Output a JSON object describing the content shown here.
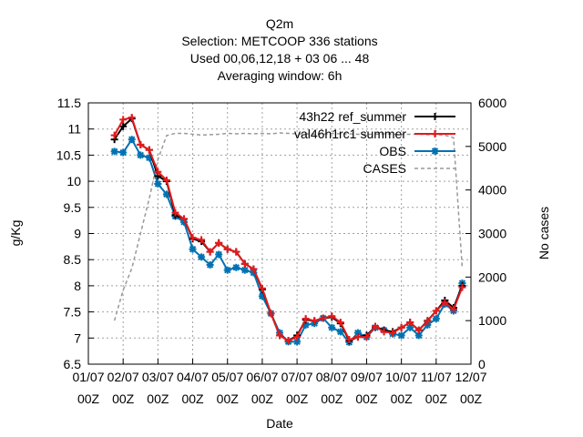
{
  "chart_data": {
    "type": "line",
    "title_lines": [
      "Q2m",
      "Selection: METCOOP    336 stations",
      "Used  00,06,12,18  + 03 06 ... 48",
      "Averaging window:  6h"
    ],
    "xlabel": "Date",
    "ylabel": "g/Kg",
    "y2label": "No cases",
    "grid": true,
    "legend_position": "top-right",
    "x_ticks": [
      {
        "day": 1,
        "l1": "01/07",
        "l2": "00Z"
      },
      {
        "day": 2,
        "l1": "02/07",
        "l2": "00Z"
      },
      {
        "day": 3,
        "l1": "03/07",
        "l2": "00Z"
      },
      {
        "day": 4,
        "l1": "04/07",
        "l2": "00Z"
      },
      {
        "day": 5,
        "l1": "05/07",
        "l2": "00Z"
      },
      {
        "day": 6,
        "l1": "06/07",
        "l2": "00Z"
      },
      {
        "day": 7,
        "l1": "07/07",
        "l2": "00Z"
      },
      {
        "day": 8,
        "l1": "08/07",
        "l2": "00Z"
      },
      {
        "day": 9,
        "l1": "09/07",
        "l2": "00Z"
      },
      {
        "day": 10,
        "l1": "10/07",
        "l2": "00Z"
      },
      {
        "day": 11,
        "l1": "11/07",
        "l2": "00Z"
      },
      {
        "day": 12,
        "l1": "12/07",
        "l2": "00Z"
      }
    ],
    "xlim": [
      1,
      12
    ],
    "ylim": [
      6.5,
      11.5
    ],
    "y_ticks": [
      "6.5",
      "7",
      "7.5",
      "8",
      "8.5",
      "9",
      "9.5",
      "10",
      "10.5",
      "11",
      "11.5"
    ],
    "y2lim": [
      0,
      6000
    ],
    "y2_ticks": [
      "0",
      "1000",
      "2000",
      "3000",
      "4000",
      "5000",
      "6000"
    ],
    "x": [
      1.75,
      2.0,
      2.25,
      2.5,
      2.75,
      3.0,
      3.25,
      3.5,
      3.75,
      4.0,
      4.25,
      4.5,
      4.75,
      5.0,
      5.25,
      5.5,
      5.75,
      6.0,
      6.25,
      6.5,
      6.75,
      7.0,
      7.25,
      7.5,
      7.75,
      8.0,
      8.25,
      8.5,
      8.75,
      9.0,
      9.25,
      9.5,
      9.75,
      10.0,
      10.25,
      10.5,
      10.75,
      11.0,
      11.25,
      11.5,
      11.75
    ],
    "series": [
      {
        "name": "43h22",
        "name_sub": "ref_summer",
        "color": "#000000",
        "marker": "plus",
        "values": [
          10.8,
          11.05,
          11.2,
          10.7,
          10.6,
          10.1,
          10.0,
          9.35,
          9.28,
          8.9,
          8.85,
          8.65,
          8.82,
          8.7,
          8.65,
          8.42,
          8.32,
          7.93,
          7.47,
          7.05,
          6.95,
          7.05,
          7.35,
          7.33,
          7.38,
          7.4,
          7.28,
          6.95,
          7.02,
          7.05,
          7.22,
          7.15,
          7.12,
          7.2,
          7.3,
          7.15,
          7.33,
          7.52,
          7.72,
          7.58,
          8.0
        ]
      },
      {
        "name": "val46h1rc1",
        "name_sub": "summer",
        "color": "#e41a1c",
        "marker": "plus",
        "values": [
          10.88,
          11.18,
          11.22,
          10.7,
          10.6,
          10.18,
          10.02,
          9.4,
          9.28,
          8.92,
          8.88,
          8.65,
          8.82,
          8.7,
          8.65,
          8.42,
          8.32,
          7.95,
          7.47,
          7.05,
          6.95,
          7.02,
          7.37,
          7.33,
          7.38,
          7.42,
          7.3,
          6.97,
          7.02,
          7.02,
          7.22,
          7.12,
          7.1,
          7.2,
          7.3,
          7.15,
          7.32,
          7.52,
          7.68,
          7.55,
          7.97
        ]
      },
      {
        "name": "OBS",
        "name_sub": "",
        "color": "#0072b2",
        "marker": "star",
        "values": [
          10.57,
          10.55,
          10.8,
          10.5,
          10.45,
          9.95,
          9.75,
          9.33,
          9.22,
          8.7,
          8.55,
          8.4,
          8.6,
          8.3,
          8.35,
          8.3,
          8.25,
          7.8,
          7.47,
          7.1,
          6.93,
          6.93,
          7.25,
          7.28,
          7.38,
          7.2,
          7.12,
          6.92,
          7.1,
          7.02,
          7.2,
          7.15,
          7.08,
          7.05,
          7.2,
          7.05,
          7.25,
          7.37,
          7.65,
          7.52,
          8.05
        ]
      }
    ],
    "cases": {
      "name": "CASES",
      "axis": "y2",
      "color": "#999999",
      "style": "dashed",
      "x": [
        1.75,
        2.0,
        2.25,
        2.5,
        2.75,
        3.0,
        3.25,
        3.5,
        3.75,
        4.0,
        4.25,
        4.5,
        4.75,
        5.0,
        5.25,
        5.5,
        5.75,
        6.0,
        6.25,
        6.5,
        6.75,
        7.0,
        7.25,
        7.5,
        7.75,
        8.0,
        8.25,
        8.5,
        8.75,
        9.0,
        9.25,
        9.5,
        9.75,
        10.0,
        10.25,
        10.5,
        10.75,
        11.0,
        11.25,
        11.5,
        11.75
      ],
      "values": [
        1000,
        1700,
        2200,
        3000,
        3800,
        4700,
        5250,
        5300,
        5300,
        5280,
        5260,
        5270,
        5280,
        5300,
        5290,
        5300,
        5290,
        5300,
        5290,
        5310,
        5300,
        5290,
        5290,
        5280,
        5280,
        5300,
        5290,
        5290,
        5280,
        5280,
        5280,
        5290,
        5280,
        5280,
        5280,
        5280,
        5270,
        5270,
        5260,
        5200,
        2200
      ]
    }
  }
}
